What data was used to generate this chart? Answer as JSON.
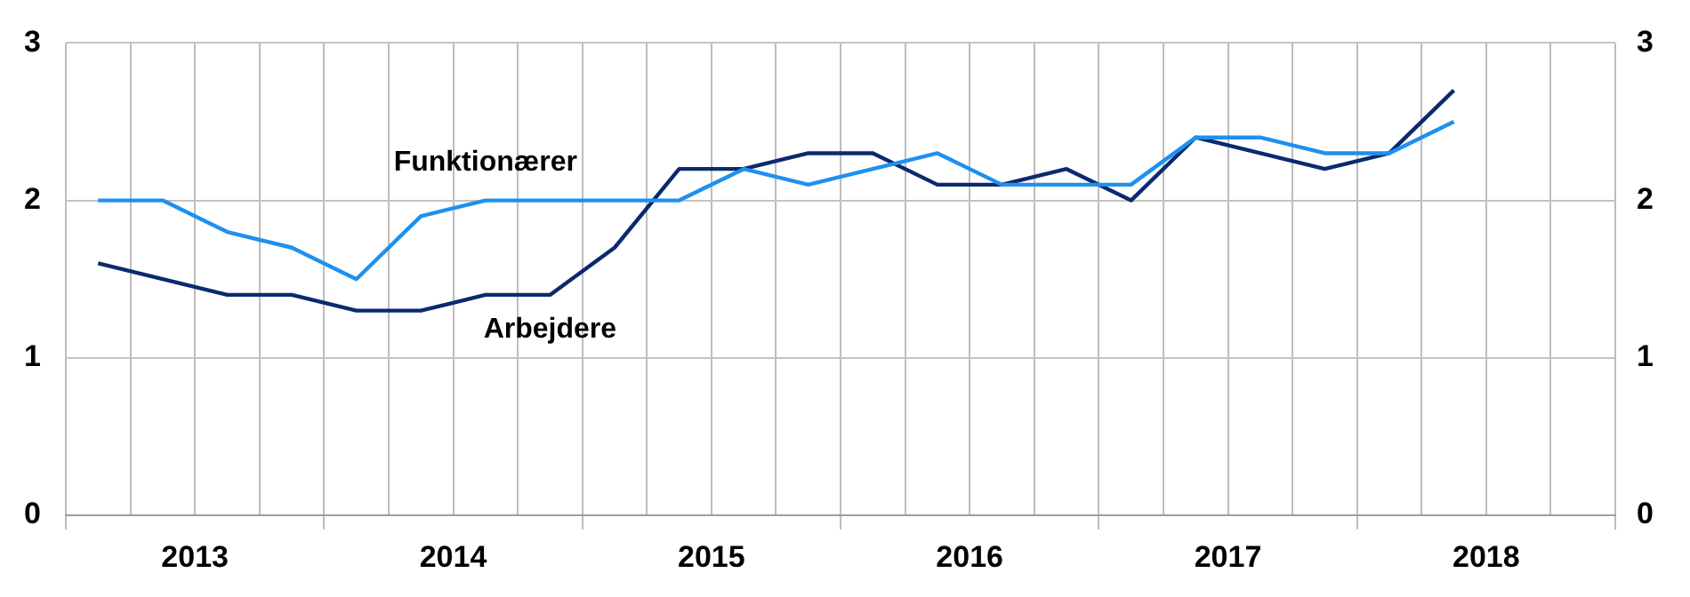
{
  "chart_data": {
    "type": "line",
    "x": [
      2013.125,
      2013.375,
      2013.625,
      2013.875,
      2014.125,
      2014.375,
      2014.625,
      2014.875,
      2015.125,
      2015.375,
      2015.625,
      2015.875,
      2016.125,
      2016.375,
      2016.625,
      2016.875,
      2017.125,
      2017.375,
      2017.625,
      2017.875,
      2018.125,
      2018.375
    ],
    "series": [
      {
        "name": "Funktionærer",
        "color": "#1e90f0",
        "values": [
          2.0,
          2.0,
          1.8,
          1.7,
          1.5,
          1.9,
          2.0,
          2.0,
          2.0,
          2.0,
          2.2,
          2.1,
          2.2,
          2.3,
          2.1,
          2.1,
          2.1,
          2.4,
          2.4,
          2.3,
          2.3,
          2.5
        ]
      },
      {
        "name": "Arbejdere",
        "color": "#0b2a6e",
        "values": [
          1.6,
          1.5,
          1.4,
          1.4,
          1.3,
          1.3,
          1.4,
          1.4,
          1.7,
          2.2,
          2.2,
          2.3,
          2.3,
          2.1,
          2.1,
          2.2,
          2.0,
          2.4,
          2.3,
          2.2,
          2.3,
          2.7
        ]
      }
    ],
    "xlim": [
      2013,
      2019
    ],
    "xticks": [
      {
        "value": 2013,
        "label": null
      },
      {
        "value": 2013.25,
        "label": null
      },
      {
        "value": 2013.5,
        "label": "2013"
      },
      {
        "value": 2013.75,
        "label": null
      },
      {
        "value": 2014,
        "label": null
      },
      {
        "value": 2014.25,
        "label": null
      },
      {
        "value": 2014.5,
        "label": "2014"
      },
      {
        "value": 2014.75,
        "label": null
      },
      {
        "value": 2015,
        "label": null
      },
      {
        "value": 2015.25,
        "label": null
      },
      {
        "value": 2015.5,
        "label": "2015"
      },
      {
        "value": 2015.75,
        "label": null
      },
      {
        "value": 2016,
        "label": null
      },
      {
        "value": 2016.25,
        "label": null
      },
      {
        "value": 2016.5,
        "label": "2016"
      },
      {
        "value": 2016.75,
        "label": null
      },
      {
        "value": 2017,
        "label": null
      },
      {
        "value": 2017.25,
        "label": null
      },
      {
        "value": 2017.5,
        "label": "2017"
      },
      {
        "value": 2017.75,
        "label": null
      },
      {
        "value": 2018,
        "label": null
      },
      {
        "value": 2018.25,
        "label": null
      },
      {
        "value": 2018.5,
        "label": "2018"
      },
      {
        "value": 2018.75,
        "label": null
      },
      {
        "value": 2019,
        "label": null
      }
    ],
    "ylim": [
      0,
      3
    ],
    "yticks": [
      0,
      1,
      2,
      3
    ],
    "y2lim": [
      0,
      3
    ],
    "y2ticks": [
      0,
      1,
      2,
      3
    ],
    "grid": true,
    "legend": false,
    "marker": "none",
    "line_style": "solid"
  }
}
